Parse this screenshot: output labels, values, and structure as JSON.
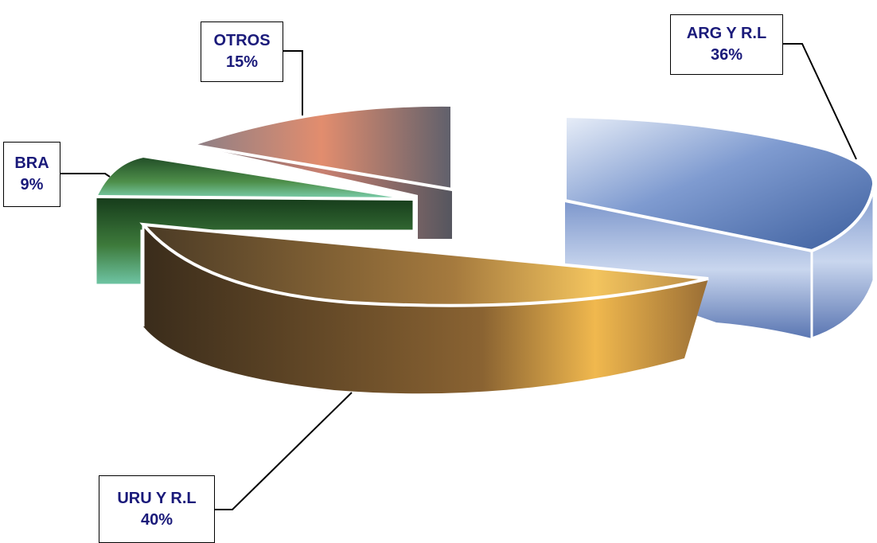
{
  "chart_data": {
    "type": "pie",
    "style": "3d-exploded",
    "slices": [
      {
        "label": "ARG Y R.L",
        "value": 36,
        "value_label": "36%",
        "fill": "sky-clouds",
        "colors": [
          "#3d5f9e",
          "#8fa9d6",
          "#e6eefa"
        ]
      },
      {
        "label": "URU Y R.L",
        "value": 40,
        "value_label": "40%",
        "fill": "sunset-sea",
        "colors": [
          "#3a2a18",
          "#b5803a",
          "#f2c25a"
        ]
      },
      {
        "label": "BRA",
        "value": 9,
        "value_label": "9%",
        "fill": "green-forest",
        "colors": [
          "#163d1c",
          "#3f7a3a",
          "#7fd0b0"
        ]
      },
      {
        "label": "OTROS",
        "value": 15,
        "value_label": "15%",
        "fill": "evening-clouds",
        "colors": [
          "#5e5f6b",
          "#8a7b80",
          "#e89070"
        ]
      }
    ],
    "title": "",
    "legend": "none"
  }
}
